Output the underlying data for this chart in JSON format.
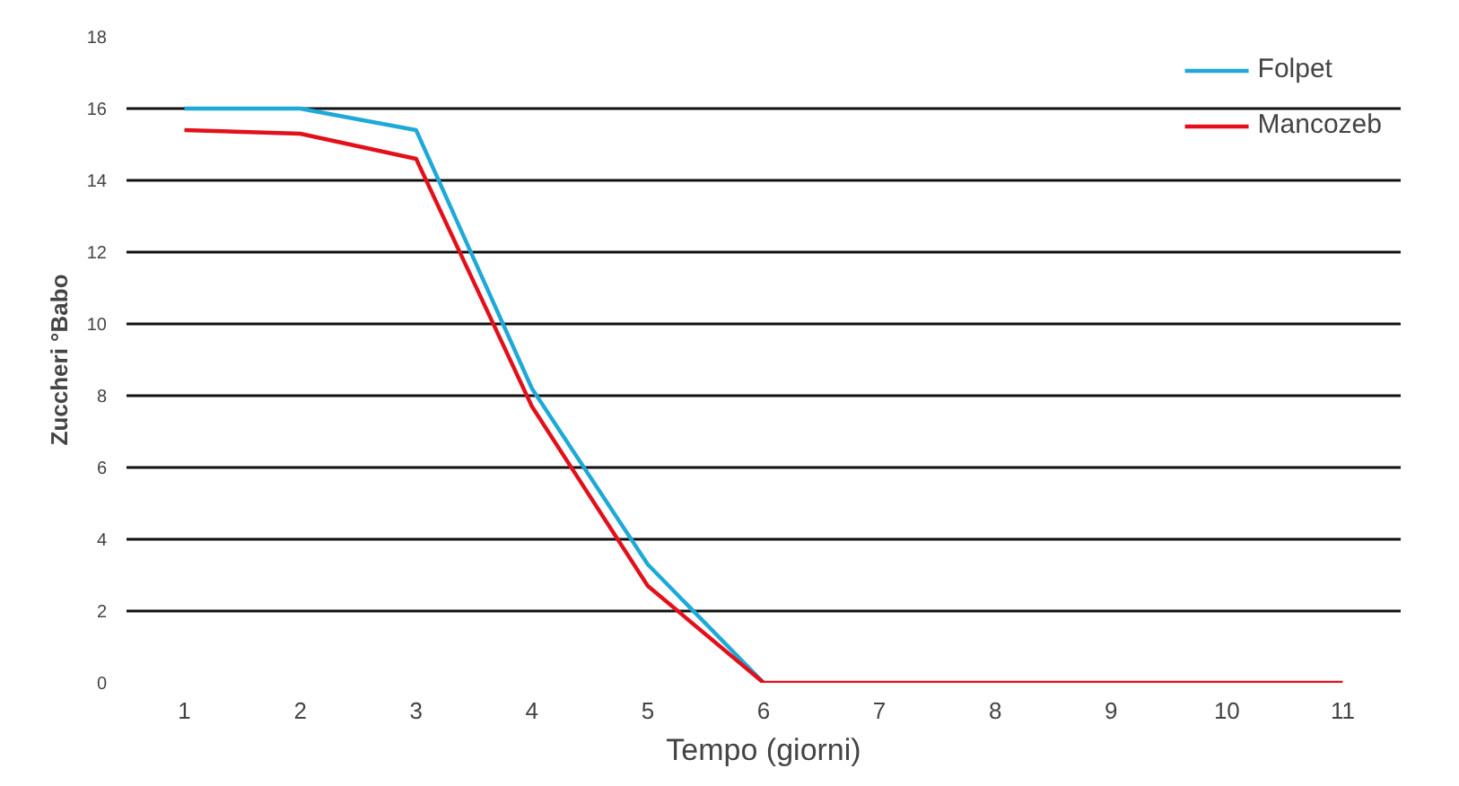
{
  "chart_data": {
    "type": "line",
    "xlabel": "Tempo (giorni)",
    "ylabel": "Zuccheri °Babo",
    "x": [
      1,
      2,
      3,
      4,
      5,
      6,
      7,
      8,
      9,
      10,
      11
    ],
    "xlim": [
      0.5,
      11.5
    ],
    "xticks": [
      1,
      2,
      3,
      4,
      5,
      6,
      7,
      8,
      9,
      10,
      11
    ],
    "ylim": [
      0,
      18
    ],
    "yticks": [
      0,
      2,
      4,
      6,
      8,
      10,
      12,
      14,
      16,
      18
    ],
    "grid": "y",
    "legend": "top right",
    "series": [
      {
        "name": "Folpet",
        "color": "#1ea9d8",
        "x": [
          1,
          2,
          3,
          4,
          5,
          6
        ],
        "values": [
          16,
          16,
          15.4,
          8.2,
          3.3,
          0
        ]
      },
      {
        "name": "Mancozeb",
        "color": "#e3101b",
        "values": [
          15.4,
          15.3,
          14.6,
          7.7,
          2.7,
          0,
          0,
          0,
          0,
          0,
          0
        ]
      }
    ]
  }
}
